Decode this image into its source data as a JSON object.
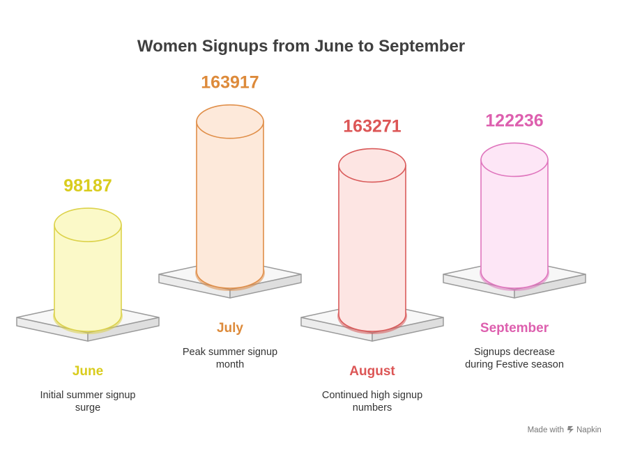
{
  "chart_data": {
    "type": "bar",
    "title": "Women Signups from June to September",
    "categories": [
      "June",
      "July",
      "August",
      "September"
    ],
    "values": [
      98187,
      163917,
      163271,
      122236
    ],
    "descriptions": [
      [
        "Initial summer signup",
        "surge"
      ],
      [
        "Peak summer signup",
        "month"
      ],
      [
        "Continued high signup",
        "numbers"
      ],
      [
        "Signups decrease",
        "during Festive season"
      ]
    ],
    "colors": [
      {
        "text": "#d9cc1e",
        "stroke": "#dcd24a",
        "fill": "#fbf9c8"
      },
      {
        "text": "#dd8a3a",
        "stroke": "#e08e48",
        "fill": "#fde9da"
      },
      {
        "text": "#dc5656",
        "stroke": "#d95a5a",
        "fill": "#fde5e3"
      },
      {
        "text": "#dd5fae",
        "stroke": "#df75bd",
        "fill": "#fde6f6"
      }
    ]
  },
  "footer": {
    "made_with": "Made with",
    "brand": "Napkin"
  }
}
